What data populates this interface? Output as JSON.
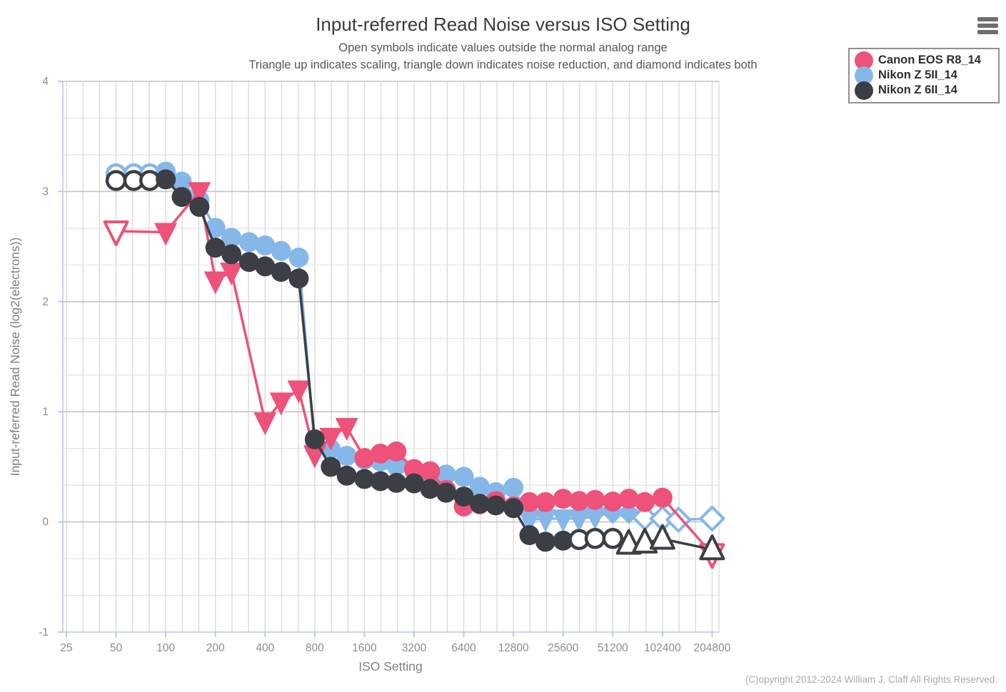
{
  "menu": {
    "icon": "hamburger-menu-icon"
  },
  "footer": {
    "copyright": "(C)opyright 2012-2024 William J. Claff All Rights Reserved."
  },
  "colors": {
    "title": "#3a3a3a",
    "subtitle": "#565656",
    "axis": "#bac9de",
    "grid_minor": "#e2e2e2",
    "grid_major": "#c4c4c4",
    "grid_vertical": "#dadada",
    "tick_label": "#8c8c8c",
    "axis_label": "#808080",
    "legend_border": "#8f8f8f",
    "legend_text": "#2e2e2e"
  },
  "chart_data": {
    "type": "scatter",
    "title": "Input-referred Read Noise versus ISO Setting",
    "subtitle_lines": [
      "Open symbols indicate values outside the normal analog range",
      "Triangle up indicates scaling, triangle down indicates noise reduction, and diamond indicates both"
    ],
    "xlabel": "ISO Setting",
    "ylabel": "Input-referred Read Noise (log2(electrons))",
    "x_scale": "log2",
    "x_ticks": [
      25,
      50,
      100,
      200,
      400,
      800,
      1600,
      3200,
      6400,
      12800,
      25600,
      51200,
      102400,
      204800
    ],
    "y_ticks": [
      4,
      3,
      2,
      1,
      0,
      -1
    ],
    "ylim": [
      -1,
      4
    ],
    "grid": "on",
    "legend_position": "top-right",
    "point_format": [
      "iso",
      "log2_read_noise_electrons",
      "marker",
      "open_symbol"
    ],
    "marker_legend": {
      "tri_down": "noise reduction",
      "tri_up": "scaling",
      "diamond": "both",
      "open": "outside normal analog range"
    },
    "draw_order": [
      1,
      0,
      2
    ],
    "series": [
      {
        "name": "Canon EOS R8_14",
        "color": "#ee5179",
        "points": [
          [
            50,
            2.64,
            "tri_down",
            true
          ],
          [
            100,
            2.63,
            "tri_down",
            false
          ],
          [
            160,
            3.0,
            "tri_down",
            false
          ],
          [
            200,
            2.19,
            "tri_down",
            false
          ],
          [
            250,
            2.27,
            "tri_down",
            false
          ],
          [
            400,
            0.91,
            "tri_down",
            false
          ],
          [
            500,
            1.09,
            "tri_down",
            false
          ],
          [
            640,
            1.2,
            "tri_down",
            false
          ],
          [
            800,
            0.61,
            "tri_down",
            false
          ],
          [
            1000,
            0.77,
            "tri_down",
            false
          ],
          [
            1250,
            0.86,
            "tri_down",
            false
          ],
          [
            1600,
            0.58,
            "circle",
            false
          ],
          [
            2000,
            0.62,
            "circle",
            false
          ],
          [
            2500,
            0.64,
            "circle",
            false
          ],
          [
            3200,
            0.48,
            "circle",
            false
          ],
          [
            4000,
            0.46,
            "circle",
            false
          ],
          [
            5000,
            0.29,
            "circle",
            false
          ],
          [
            6400,
            0.14,
            "circle",
            false
          ],
          [
            8000,
            0.16,
            "circle",
            false
          ],
          [
            10000,
            0.19,
            "circle",
            false
          ],
          [
            12800,
            0.14,
            "circle",
            false
          ],
          [
            16000,
            0.18,
            "circle",
            false
          ],
          [
            20000,
            0.18,
            "circle",
            false
          ],
          [
            25600,
            0.21,
            "circle",
            false
          ],
          [
            32000,
            0.19,
            "circle",
            false
          ],
          [
            40000,
            0.2,
            "circle",
            false
          ],
          [
            51200,
            0.185,
            "circle",
            false
          ],
          [
            64000,
            0.21,
            "circle",
            false
          ],
          [
            80000,
            0.18,
            "circle",
            false
          ],
          [
            102400,
            0.22,
            "circle",
            false
          ],
          [
            204800,
            -0.29,
            "tri_down",
            true
          ]
        ]
      },
      {
        "name": "Nikon Z 5II_14",
        "color": "#85b7e9",
        "points": [
          [
            50,
            3.16,
            "circle",
            true
          ],
          [
            64,
            3.16,
            "circle",
            true
          ],
          [
            80,
            3.16,
            "circle",
            true
          ],
          [
            100,
            3.18,
            "circle",
            false
          ],
          [
            125,
            3.09,
            "circle",
            false
          ],
          [
            160,
            2.92,
            "circle",
            false
          ],
          [
            200,
            2.67,
            "circle",
            false
          ],
          [
            250,
            2.58,
            "circle",
            false
          ],
          [
            320,
            2.54,
            "circle",
            false
          ],
          [
            400,
            2.51,
            "circle",
            false
          ],
          [
            500,
            2.46,
            "circle",
            false
          ],
          [
            640,
            2.4,
            "circle",
            false
          ],
          [
            800,
            0.68,
            "circle",
            false
          ],
          [
            1000,
            0.66,
            "circle",
            false
          ],
          [
            1250,
            0.6,
            "circle",
            false
          ],
          [
            1600,
            0.565,
            "circle",
            false
          ],
          [
            2000,
            0.55,
            "circle",
            false
          ],
          [
            2500,
            0.51,
            "circle",
            false
          ],
          [
            3200,
            0.47,
            "circle",
            false
          ],
          [
            4000,
            0.44,
            "circle",
            false
          ],
          [
            5000,
            0.43,
            "circle",
            false
          ],
          [
            6400,
            0.41,
            "circle",
            false
          ],
          [
            8000,
            0.32,
            "circle",
            false
          ],
          [
            10000,
            0.27,
            "circle",
            false
          ],
          [
            12800,
            0.31,
            "circle",
            false
          ],
          [
            16000,
            0.02,
            "tri_down",
            false
          ],
          [
            20000,
            0.03,
            "tri_down",
            false
          ],
          [
            25600,
            0.03,
            "tri_down",
            false
          ],
          [
            32000,
            0.03,
            "tri_down",
            false
          ],
          [
            40000,
            0.05,
            "tri_down",
            false
          ],
          [
            51200,
            0.085,
            "diamond",
            false
          ],
          [
            64000,
            0.085,
            "diamond",
            false
          ],
          [
            80000,
            0.04,
            "diamond",
            true
          ],
          [
            102400,
            0.03,
            "diamond",
            true
          ],
          [
            128000,
            0.02,
            "diamond",
            true
          ],
          [
            204800,
            0.03,
            "diamond",
            true
          ]
        ]
      },
      {
        "name": "Nikon Z 6II_14",
        "color": "#3c3e45",
        "points": [
          [
            50,
            3.1,
            "circle",
            true
          ],
          [
            64,
            3.1,
            "circle",
            true
          ],
          [
            80,
            3.1,
            "circle",
            true
          ],
          [
            100,
            3.11,
            "circle",
            false
          ],
          [
            125,
            2.95,
            "circle",
            false
          ],
          [
            160,
            2.86,
            "circle",
            false
          ],
          [
            200,
            2.49,
            "circle",
            false
          ],
          [
            250,
            2.43,
            "circle",
            false
          ],
          [
            320,
            2.36,
            "circle",
            false
          ],
          [
            400,
            2.32,
            "circle",
            false
          ],
          [
            500,
            2.27,
            "circle",
            false
          ],
          [
            640,
            2.21,
            "circle",
            false
          ],
          [
            800,
            0.75,
            "circle",
            false
          ],
          [
            1000,
            0.5,
            "circle",
            false
          ],
          [
            1250,
            0.42,
            "circle",
            false
          ],
          [
            1600,
            0.39,
            "circle",
            false
          ],
          [
            2000,
            0.37,
            "circle",
            false
          ],
          [
            2500,
            0.355,
            "circle",
            false
          ],
          [
            3200,
            0.35,
            "circle",
            false
          ],
          [
            4000,
            0.3,
            "circle",
            false
          ],
          [
            5000,
            0.265,
            "circle",
            false
          ],
          [
            6400,
            0.23,
            "circle",
            false
          ],
          [
            8000,
            0.165,
            "circle",
            false
          ],
          [
            10000,
            0.15,
            "circle",
            false
          ],
          [
            12800,
            0.125,
            "circle",
            false
          ],
          [
            16000,
            -0.12,
            "circle",
            false
          ],
          [
            20000,
            -0.18,
            "circle",
            false
          ],
          [
            25600,
            -0.17,
            "circle",
            false
          ],
          [
            32000,
            -0.16,
            "circle",
            true
          ],
          [
            40000,
            -0.15,
            "circle",
            true
          ],
          [
            51200,
            -0.15,
            "circle",
            true
          ],
          [
            64000,
            -0.2,
            "tri_up",
            true
          ],
          [
            80000,
            -0.19,
            "tri_up",
            true
          ],
          [
            102400,
            -0.155,
            "tri_up",
            true
          ],
          [
            204800,
            -0.25,
            "tri_up",
            true
          ]
        ]
      }
    ]
  }
}
